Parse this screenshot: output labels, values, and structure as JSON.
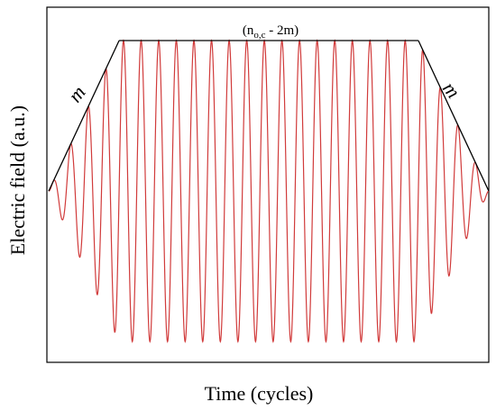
{
  "chart_data": {
    "type": "line",
    "title": "",
    "xlabel": "Time (cycles)",
    "ylabel": "Electric field (a.u.)",
    "x_unit": "cycles",
    "grid": false,
    "legend": "none",
    "cycles_total": 25,
    "ramp_cycles": 4,
    "flat_amplitude": 1.0,
    "colors": {
      "carrier": "#d13b3b",
      "envelope": "#000000",
      "frame": "#000000"
    },
    "envelope": {
      "x": [
        0,
        4,
        21,
        25
      ],
      "y": [
        0.0,
        1.0,
        1.0,
        0.0
      ]
    },
    "annotations": {
      "ramp_up": "m",
      "ramp_down": "m",
      "plateau_main": "(n",
      "plateau_sub": "o,c",
      "plateau_tail": " - 2m)"
    }
  }
}
